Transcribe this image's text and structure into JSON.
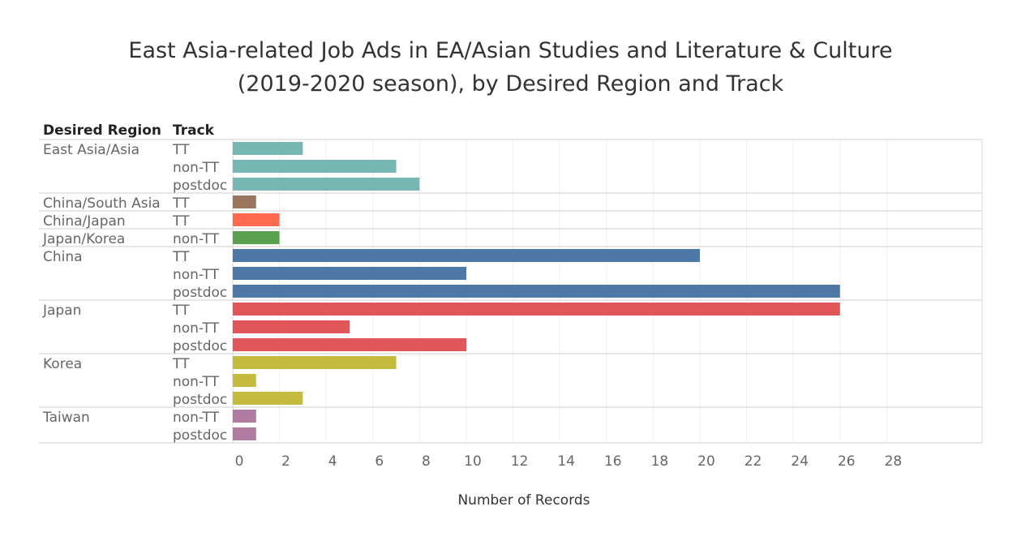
{
  "chart_data": {
    "type": "bar",
    "orientation": "horizontal",
    "title": "East Asia-related Job Ads in EA/Asian Studies and Literature & Culture",
    "subtitle": "(2019-2020 season), by Desired Region and Track",
    "row_headers": [
      "Desired Region",
      "Track"
    ],
    "xlabel": "Number of Records",
    "xlim": [
      0,
      28
    ],
    "xticks": [
      "0",
      "2",
      "4",
      "6",
      "8",
      "10",
      "12",
      "14",
      "16",
      "18",
      "20",
      "22",
      "24",
      "26",
      "28"
    ],
    "groups": [
      {
        "region": "East Asia/Asia",
        "color": "#76b7b2",
        "bars": [
          {
            "track": "TT",
            "value": 3
          },
          {
            "track": "non-TT",
            "value": 7
          },
          {
            "track": "postdoc",
            "value": 8
          }
        ]
      },
      {
        "region": "China/South Asia",
        "color": "#9c755f",
        "bars": [
          {
            "track": "TT",
            "value": 1
          }
        ]
      },
      {
        "region": "China/Japan",
        "color": "#ff6b4e",
        "bars": [
          {
            "track": "TT",
            "value": 2
          }
        ]
      },
      {
        "region": "Japan/Korea",
        "color": "#59a14f",
        "bars": [
          {
            "track": "non-TT",
            "value": 2
          }
        ]
      },
      {
        "region": "China",
        "color": "#4e79a7",
        "bars": [
          {
            "track": "TT",
            "value": 20
          },
          {
            "track": "non-TT",
            "value": 10
          },
          {
            "track": "postdoc",
            "value": 26
          }
        ]
      },
      {
        "region": "Japan",
        "color": "#e15759",
        "bars": [
          {
            "track": "TT",
            "value": 26
          },
          {
            "track": "non-TT",
            "value": 5
          },
          {
            "track": "postdoc",
            "value": 10
          }
        ]
      },
      {
        "region": "Korea",
        "color": "#c5bb3e",
        "bars": [
          {
            "track": "TT",
            "value": 7
          },
          {
            "track": "non-TT",
            "value": 1
          },
          {
            "track": "postdoc",
            "value": 3
          }
        ]
      },
      {
        "region": "Taiwan",
        "color": "#b07aa1",
        "bars": [
          {
            "track": "non-TT",
            "value": 1
          },
          {
            "track": "postdoc",
            "value": 1
          }
        ]
      }
    ]
  }
}
